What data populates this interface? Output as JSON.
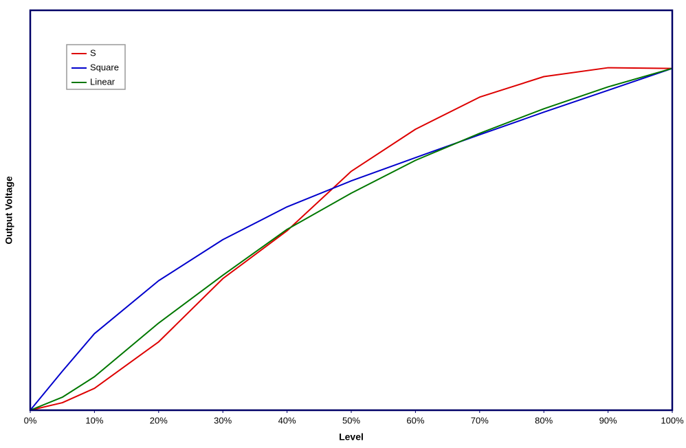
{
  "chart_data": {
    "type": "line",
    "x_label": "Level",
    "y_label": "Output Voltage",
    "x": [
      0,
      5,
      10,
      20,
      30,
      40,
      50,
      60,
      70,
      80,
      90,
      100
    ],
    "xlim": [
      0,
      100
    ],
    "xticks": [
      {
        "value": 0,
        "label": "0%"
      },
      {
        "value": 10,
        "label": "10%"
      },
      {
        "value": 20,
        "label": "20%"
      },
      {
        "value": 30,
        "label": "30%"
      },
      {
        "value": 40,
        "label": "40%"
      },
      {
        "value": 50,
        "label": "50%"
      },
      {
        "value": 60,
        "label": "60%"
      },
      {
        "value": 70,
        "label": "70%"
      },
      {
        "value": 80,
        "label": "80%"
      },
      {
        "value": 90,
        "label": "90%"
      },
      {
        "value": 100,
        "label": "100%"
      }
    ],
    "ylim": [
      0,
      117
    ],
    "legend": "upper-left",
    "series": [
      {
        "name": "S",
        "color": "#dd0000",
        "values": [
          0,
          2.2,
          6.4,
          20,
          38.5,
          52.5,
          69.9,
          82.2,
          91.6,
          97.6,
          100.2,
          100
        ]
      },
      {
        "name": "Square",
        "color": "#0000cc",
        "values": [
          0,
          11.4,
          22.4,
          37.9,
          49.9,
          59.5,
          67.1,
          73.9,
          80.6,
          87.2,
          93.6,
          100
        ]
      },
      {
        "name": "Linear",
        "color": "#007700",
        "values": [
          0,
          3.8,
          9.8,
          25.5,
          39.5,
          52.9,
          63.5,
          73.1,
          81,
          88.2,
          94.6,
          100
        ]
      }
    ]
  }
}
